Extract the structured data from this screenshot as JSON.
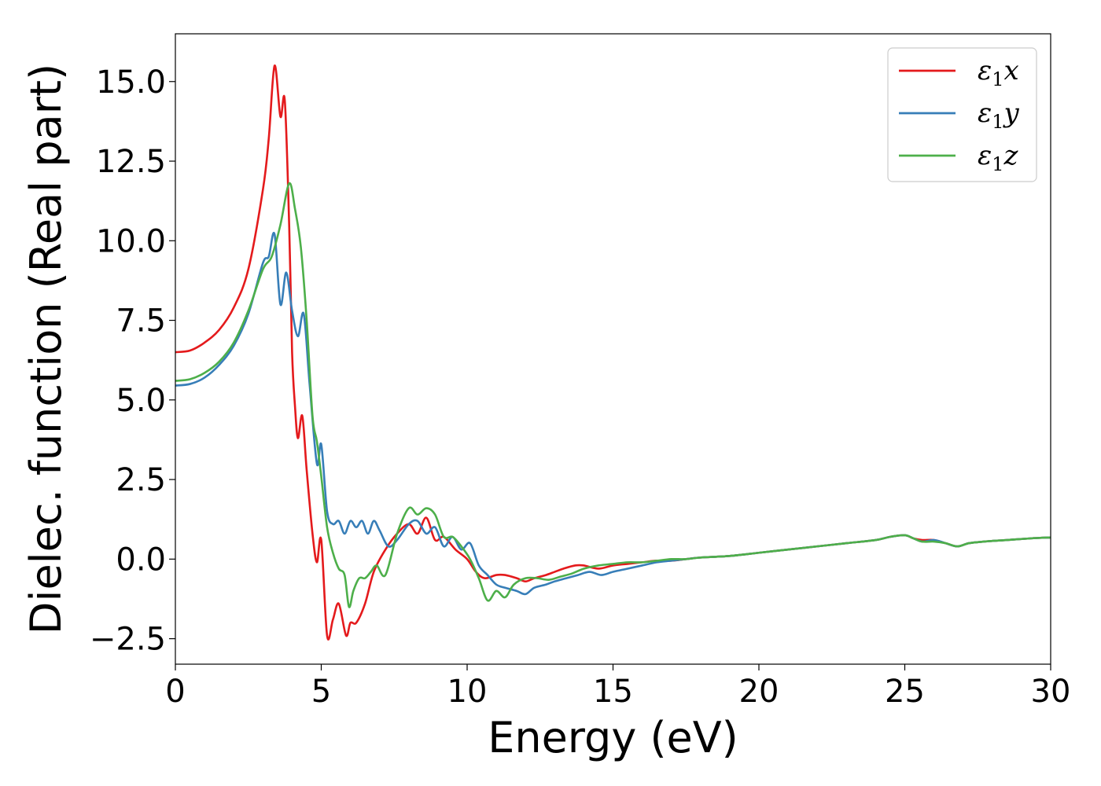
{
  "chart_data": {
    "type": "line",
    "xlabel": "Energy (eV)",
    "ylabel": "Dielec. function (Real part)",
    "xlim": [
      0,
      30
    ],
    "ylim": [
      -3.3,
      16.5
    ],
    "xticks": [
      0,
      5,
      10,
      15,
      20,
      25,
      30
    ],
    "xtick_labels": [
      "0",
      "5",
      "10",
      "15",
      "20",
      "25",
      "30"
    ],
    "yticks": [
      -2.5,
      0.0,
      2.5,
      5.0,
      7.5,
      10.0,
      12.5,
      15.0
    ],
    "ytick_labels": [
      "−2.5",
      "0.0",
      "2.5",
      "5.0",
      "7.5",
      "10.0",
      "12.5",
      "15.0"
    ],
    "grid": false,
    "legend_position": "top-right",
    "series": [
      {
        "name": "ε1x",
        "name_parts": {
          "base": "ε",
          "sub": "1",
          "tail": "x"
        },
        "color": "#e41a1c",
        "x": [
          0,
          0.5,
          1,
          1.5,
          2,
          2.5,
          3,
          3.2,
          3.4,
          3.6,
          3.75,
          3.9,
          4.0,
          4.1,
          4.2,
          4.35,
          4.5,
          4.7,
          4.85,
          5.0,
          5.2,
          5.4,
          5.6,
          5.85,
          6.0,
          6.2,
          6.5,
          6.8,
          7.2,
          7.6,
          8.0,
          8.3,
          8.6,
          8.9,
          9.2,
          9.6,
          10.0,
          10.3,
          10.6,
          11.0,
          11.3,
          11.7,
          12.0,
          12.3,
          12.7,
          13.0,
          13.3,
          13.7,
          14.0,
          14.5,
          15.0,
          15.5,
          16.0,
          16.5,
          17.0,
          17.5,
          18.0,
          19.0,
          20.0,
          21.0,
          22.0,
          23.0,
          24.0,
          24.5,
          25.0,
          25.3,
          25.6,
          26.0,
          26.4,
          26.8,
          27.2,
          27.7,
          28.5,
          29.3,
          30.0
        ],
        "y": [
          6.5,
          6.55,
          6.8,
          7.2,
          7.9,
          9.1,
          11.6,
          13.2,
          15.5,
          13.9,
          14.4,
          10.5,
          6.5,
          4.8,
          3.8,
          4.5,
          2.8,
          0.8,
          -0.1,
          0.6,
          -2.4,
          -1.9,
          -1.4,
          -2.4,
          -2.0,
          -2.0,
          -1.4,
          -0.4,
          0.3,
          0.8,
          1.1,
          0.8,
          1.3,
          0.6,
          0.7,
          0.3,
          0.0,
          -0.4,
          -0.6,
          -0.5,
          -0.5,
          -0.6,
          -0.7,
          -0.6,
          -0.5,
          -0.4,
          -0.3,
          -0.2,
          -0.2,
          -0.3,
          -0.2,
          -0.15,
          -0.1,
          -0.05,
          -0.05,
          0.0,
          0.05,
          0.1,
          0.2,
          0.3,
          0.4,
          0.5,
          0.6,
          0.7,
          0.75,
          0.65,
          0.6,
          0.6,
          0.5,
          0.4,
          0.5,
          0.55,
          0.6,
          0.65,
          0.68
        ]
      },
      {
        "name": "ε1y",
        "name_parts": {
          "base": "ε",
          "sub": "1",
          "tail": "y"
        },
        "color": "#377eb8",
        "x": [
          0,
          0.5,
          1,
          1.5,
          2,
          2.5,
          3,
          3.2,
          3.4,
          3.6,
          3.8,
          4.0,
          4.2,
          4.4,
          4.6,
          4.85,
          5.0,
          5.2,
          5.4,
          5.6,
          5.8,
          6.0,
          6.2,
          6.4,
          6.6,
          6.8,
          7.0,
          7.3,
          7.6,
          8.0,
          8.3,
          8.6,
          8.9,
          9.2,
          9.5,
          9.8,
          10.1,
          10.4,
          10.7,
          11.0,
          11.3,
          11.7,
          12.0,
          12.3,
          12.7,
          13.0,
          13.4,
          13.8,
          14.2,
          14.6,
          15.0,
          15.5,
          16.0,
          16.5,
          17.0,
          17.5,
          18.0,
          19.0,
          20.0,
          21.0,
          22.0,
          23.0,
          24.0,
          24.5,
          25.0,
          25.3,
          25.6,
          26.0,
          26.4,
          26.8,
          27.2,
          27.7,
          28.5,
          29.3,
          30.0
        ],
        "y": [
          5.45,
          5.5,
          5.7,
          6.1,
          6.7,
          7.7,
          9.3,
          9.5,
          10.2,
          8.0,
          9.0,
          7.8,
          7.0,
          7.7,
          5.5,
          3.0,
          3.6,
          1.5,
          1.1,
          1.2,
          0.8,
          1.2,
          1.0,
          1.2,
          0.8,
          1.2,
          0.9,
          0.4,
          0.6,
          1.1,
          1.2,
          0.8,
          1.0,
          0.4,
          0.7,
          0.3,
          0.5,
          -0.2,
          -0.5,
          -0.8,
          -0.9,
          -1.0,
          -1.1,
          -0.9,
          -0.8,
          -0.7,
          -0.6,
          -0.5,
          -0.4,
          -0.5,
          -0.4,
          -0.3,
          -0.2,
          -0.1,
          -0.05,
          0.0,
          0.05,
          0.1,
          0.2,
          0.3,
          0.4,
          0.5,
          0.6,
          0.7,
          0.75,
          0.65,
          0.55,
          0.6,
          0.5,
          0.4,
          0.5,
          0.55,
          0.6,
          0.65,
          0.68
        ]
      },
      {
        "name": "ε1z",
        "name_parts": {
          "base": "ε",
          "sub": "1",
          "tail": "z"
        },
        "color": "#4daf4a",
        "x": [
          0,
          0.5,
          1,
          1.5,
          2,
          2.5,
          3,
          3.3,
          3.6,
          3.9,
          4.1,
          4.3,
          4.5,
          4.7,
          4.85,
          5.0,
          5.2,
          5.4,
          5.6,
          5.8,
          5.95,
          6.1,
          6.3,
          6.5,
          6.7,
          6.9,
          7.2,
          7.6,
          8.0,
          8.3,
          8.6,
          8.9,
          9.2,
          9.5,
          9.8,
          10.1,
          10.4,
          10.7,
          11.0,
          11.3,
          11.6,
          12.0,
          12.4,
          12.8,
          13.2,
          13.6,
          14.0,
          14.5,
          15.0,
          15.5,
          16.0,
          16.5,
          17.0,
          17.5,
          18.0,
          19.0,
          20.0,
          21.0,
          22.0,
          23.0,
          24.0,
          24.5,
          25.0,
          25.3,
          25.6,
          26.0,
          26.4,
          26.8,
          27.2,
          27.7,
          28.5,
          29.3,
          30.0
        ],
        "y": [
          5.6,
          5.65,
          5.85,
          6.2,
          6.8,
          7.8,
          9.1,
          9.5,
          10.5,
          11.8,
          11.0,
          9.8,
          7.5,
          4.5,
          3.7,
          2.6,
          1.0,
          0.2,
          -0.3,
          -0.5,
          -1.5,
          -1.0,
          -0.6,
          -0.6,
          -0.4,
          -0.2,
          -0.5,
          0.8,
          1.6,
          1.4,
          1.6,
          1.4,
          0.7,
          0.7,
          0.4,
          0.0,
          -0.6,
          -1.3,
          -1.0,
          -1.2,
          -0.8,
          -0.6,
          -0.6,
          -0.65,
          -0.55,
          -0.45,
          -0.3,
          -0.2,
          -0.15,
          -0.1,
          -0.1,
          -0.05,
          0.0,
          0.0,
          0.05,
          0.1,
          0.2,
          0.3,
          0.4,
          0.5,
          0.6,
          0.7,
          0.75,
          0.65,
          0.55,
          0.55,
          0.5,
          0.4,
          0.5,
          0.55,
          0.6,
          0.65,
          0.68
        ]
      }
    ]
  }
}
